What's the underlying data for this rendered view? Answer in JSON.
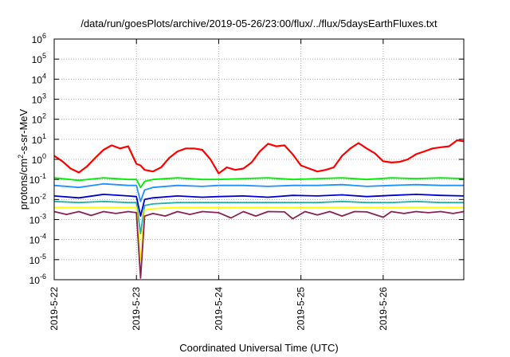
{
  "chart_data": {
    "type": "line",
    "title": "/data/run/goesPlots/archive/2019-05-26/23:00/flux/../flux/5daysEarthFluxes.txt",
    "xlabel": "Coordinated Universal Time (UTC)",
    "ylabel": "protons/cm²-s-sr-MeV",
    "ylabel_parts": {
      "base": "protons/cm",
      "sup": "2",
      "rest": "-s-sr-MeV"
    },
    "x_ticks": [
      "2019-5-22",
      "2019-5-23",
      "2019-5-24",
      "2019-5-25",
      "2019-5-26"
    ],
    "x_range_days": [
      0,
      4.98
    ],
    "y_scale": "log",
    "ylim": [
      1e-06,
      1000000.0
    ],
    "y_ticks": [
      {
        "base": "10",
        "exp": "-6"
      },
      {
        "base": "10",
        "exp": "-5"
      },
      {
        "base": "10",
        "exp": "-4"
      },
      {
        "base": "10",
        "exp": "-3"
      },
      {
        "base": "10",
        "exp": "-2"
      },
      {
        "base": "10",
        "exp": "-1"
      },
      {
        "base": "10",
        "exp": "0"
      },
      {
        "base": "10",
        "exp": "1"
      },
      {
        "base": "10",
        "exp": "2"
      },
      {
        "base": "10",
        "exp": "3"
      },
      {
        "base": "10",
        "exp": "4"
      },
      {
        "base": "10",
        "exp": "5"
      },
      {
        "base": "10",
        "exp": "6"
      }
    ],
    "grid": true,
    "series": [
      {
        "color": "#ff0000",
        "x": [
          0,
          0.1,
          0.2,
          0.3,
          0.4,
          0.5,
          0.6,
          0.7,
          0.8,
          0.9,
          1.0,
          1.05,
          1.1,
          1.2,
          1.3,
          1.4,
          1.5,
          1.6,
          1.7,
          1.8,
          1.9,
          2.0,
          2.1,
          2.2,
          2.3,
          2.4,
          2.5,
          2.6,
          2.7,
          2.8,
          2.9,
          3.0,
          3.1,
          3.2,
          3.3,
          3.4,
          3.5,
          3.6,
          3.7,
          3.8,
          3.9,
          4.0,
          4.1,
          4.2,
          4.3,
          4.4,
          4.5,
          4.6,
          4.7,
          4.8,
          4.9,
          4.98
        ],
        "y": [
          1.5,
          0.8,
          0.35,
          0.22,
          0.45,
          1.2,
          3.0,
          5.0,
          3.5,
          4.5,
          0.6,
          0.5,
          0.3,
          0.25,
          0.4,
          1.2,
          2.5,
          3.5,
          3.5,
          3.0,
          1.0,
          0.2,
          0.4,
          0.3,
          0.35,
          0.7,
          2.5,
          6.0,
          4.5,
          5.0,
          1.8,
          0.5,
          0.35,
          0.25,
          0.3,
          0.4,
          1.5,
          3.5,
          6.5,
          3.5,
          2.0,
          0.8,
          0.7,
          0.75,
          1.0,
          1.8,
          2.5,
          3.5,
          4.0,
          4.5,
          9.0,
          8.0
        ]
      },
      {
        "color": "#00ee00",
        "x": [
          0,
          0.3,
          0.6,
          0.9,
          1.0,
          1.05,
          1.1,
          1.2,
          1.5,
          1.8,
          2.0,
          2.3,
          2.6,
          2.9,
          3.2,
          3.5,
          3.8,
          4.1,
          4.4,
          4.7,
          4.98
        ],
        "y": [
          0.12,
          0.09,
          0.12,
          0.1,
          0.1,
          0.04,
          0.08,
          0.1,
          0.12,
          0.1,
          0.1,
          0.11,
          0.12,
          0.1,
          0.11,
          0.12,
          0.1,
          0.12,
          0.11,
          0.12,
          0.11
        ]
      },
      {
        "color": "#1e90ff",
        "x": [
          0,
          0.3,
          0.6,
          0.9,
          1.0,
          1.05,
          1.1,
          1.2,
          1.5,
          1.8,
          2.0,
          2.3,
          2.6,
          2.9,
          3.2,
          3.5,
          3.8,
          4.1,
          4.4,
          4.7,
          4.98
        ],
        "y": [
          0.05,
          0.04,
          0.06,
          0.05,
          0.05,
          0.008,
          0.03,
          0.04,
          0.05,
          0.045,
          0.05,
          0.05,
          0.045,
          0.05,
          0.05,
          0.055,
          0.045,
          0.05,
          0.055,
          0.05,
          0.05
        ]
      },
      {
        "color": "#0000cd",
        "x": [
          0,
          0.3,
          0.6,
          0.9,
          1.0,
          1.05,
          1.1,
          1.2,
          1.5,
          1.8,
          2.0,
          2.3,
          2.6,
          2.9,
          3.2,
          3.5,
          3.8,
          4.1,
          4.4,
          4.7,
          4.98
        ],
        "y": [
          0.015,
          0.012,
          0.018,
          0.015,
          0.014,
          0.0015,
          0.01,
          0.012,
          0.015,
          0.013,
          0.014,
          0.015,
          0.013,
          0.016,
          0.015,
          0.017,
          0.014,
          0.016,
          0.018,
          0.016,
          0.015
        ]
      },
      {
        "color": "#20b2aa",
        "x": [
          0,
          0.3,
          0.6,
          0.9,
          1.0,
          1.05,
          1.1,
          1.2,
          1.5,
          1.8,
          2.0,
          2.3,
          2.6,
          2.9,
          3.2,
          3.5,
          3.8,
          4.1,
          4.4,
          4.7,
          4.98
        ],
        "y": [
          0.008,
          0.007,
          0.008,
          0.007,
          0.007,
          0.0002,
          0.005,
          0.006,
          0.007,
          0.007,
          0.007,
          0.007,
          0.007,
          0.007,
          0.007,
          0.008,
          0.007,
          0.007,
          0.008,
          0.007,
          0.007
        ]
      },
      {
        "color": "#ffff00",
        "x": [
          0,
          0.3,
          0.6,
          0.9,
          1.0,
          1.05,
          1.1,
          1.2,
          1.5,
          1.8,
          2.0,
          2.3,
          2.6,
          2.9,
          3.2,
          3.5,
          3.8,
          4.1,
          4.4,
          4.7,
          4.98
        ],
        "y": [
          0.004,
          0.004,
          0.004,
          0.004,
          0.004,
          1e-05,
          0.003,
          0.0035,
          0.004,
          0.004,
          0.004,
          0.004,
          0.004,
          0.004,
          0.004,
          0.004,
          0.004,
          0.004,
          0.004,
          0.004,
          0.004
        ]
      },
      {
        "color": "#8b2252",
        "x": [
          0,
          0.15,
          0.3,
          0.45,
          0.6,
          0.75,
          0.9,
          1.0,
          1.05,
          1.1,
          1.2,
          1.35,
          1.5,
          1.65,
          1.8,
          2.0,
          2.15,
          2.3,
          2.45,
          2.6,
          2.8,
          2.9,
          3.05,
          3.2,
          3.35,
          3.5,
          3.65,
          3.8,
          4.0,
          4.1,
          4.25,
          4.4,
          4.55,
          4.7,
          4.85,
          4.98
        ],
        "y": [
          0.0025,
          0.0018,
          0.0025,
          0.0016,
          0.0025,
          0.002,
          0.0025,
          0.0022,
          1.2e-06,
          0.0015,
          0.002,
          0.0015,
          0.0025,
          0.0018,
          0.0025,
          0.0022,
          0.0012,
          0.0025,
          0.0015,
          0.0025,
          0.0024,
          0.0011,
          0.0025,
          0.0017,
          0.0025,
          0.0015,
          0.0025,
          0.0024,
          0.0013,
          0.0025,
          0.002,
          0.0025,
          0.0022,
          0.0025,
          0.002,
          0.0025
        ]
      }
    ]
  }
}
